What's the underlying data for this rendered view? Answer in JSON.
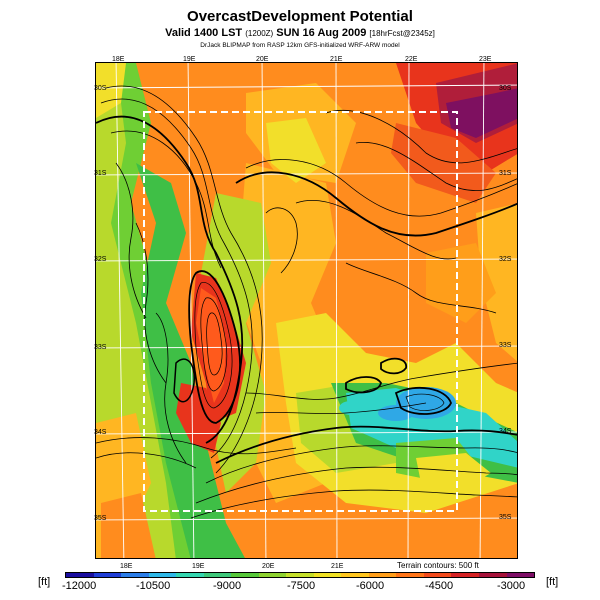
{
  "title": "OvercastDevelopment Potential",
  "subtitle_main": "Valid 1400 LST",
  "subtitle_small1": "(1200Z)",
  "subtitle_main2": "SUN 16 Aug 2009",
  "subtitle_small2": "[18hrFcst@2345z]",
  "credit": "DrJack BLIPMAP from RASP 12km GFS-initialized WRF-ARW model",
  "lon_labels_top": [
    "18E",
    "19E",
    "20E",
    "21E",
    "22E",
    "23E"
  ],
  "lon_labels_bottom": [
    "18E",
    "19E",
    "20E",
    "21E"
  ],
  "lat_labels_left": [
    "30S",
    "31S",
    "32S",
    "33S",
    "34S",
    "35S"
  ],
  "lat_labels_right": [
    "30S",
    "31S",
    "32S",
    "33S",
    "34S",
    "35S"
  ],
  "terrain_note": "Terrain contours: 500 ft",
  "colorbar": {
    "unit_left": "[ft]",
    "unit_right": "[ft]",
    "ticks": [
      "-12000",
      "-10500",
      "-9000",
      "-7500",
      "-6000",
      "-4500",
      "-3000"
    ],
    "colors": [
      "#1a0ea0",
      "#1f3ed6",
      "#2b7de8",
      "#2fb8e8",
      "#35d6b0",
      "#3ec77a",
      "#57c83a",
      "#8ed230",
      "#c5df2a",
      "#f0e124",
      "#ffc61f",
      "#ff9e1a",
      "#ff7418",
      "#f24a1c",
      "#d52224",
      "#a6123a",
      "#7e0e66"
    ]
  },
  "map_colors": {
    "orange": "#ff8c1e",
    "yellow_orange": "#ffb622",
    "yellow": "#f2df2a",
    "lime": "#b8d92c",
    "green": "#6fcf34",
    "mid_green": "#3fbf46",
    "cyan": "#30d4c8",
    "light_blue": "#2fa8e6",
    "red": "#e8341c",
    "dark_red": "#b01e3a",
    "purple": "#7e1060"
  },
  "overlay": {
    "box_style": "dashed-white",
    "grid_color": "#ffffff",
    "contour_color": "#000000"
  }
}
